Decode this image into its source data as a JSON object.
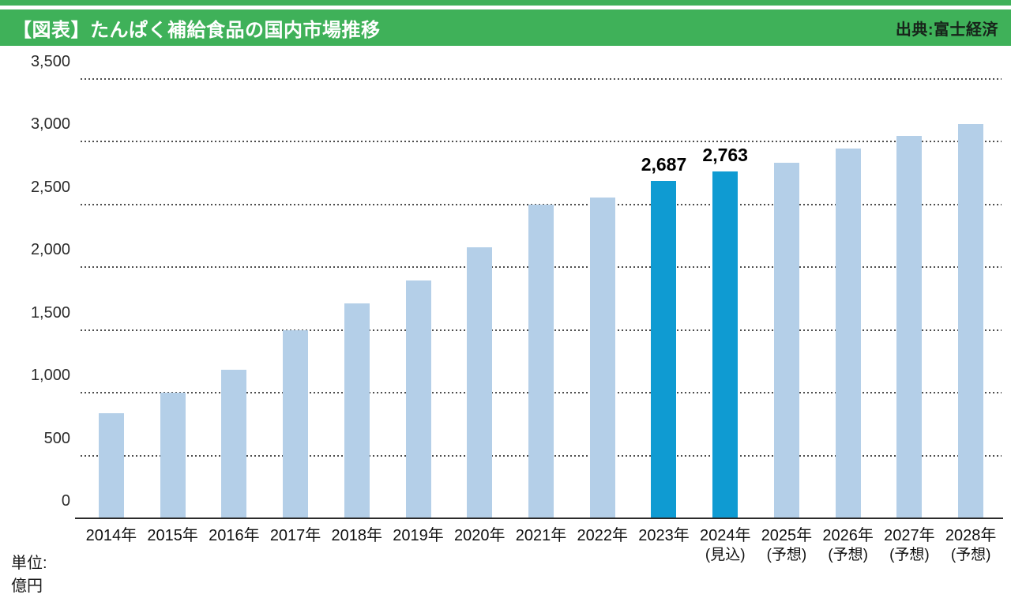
{
  "header": {
    "title": "【図表】たんぱく補給食品の国内市場推移",
    "source": "出典:富士経済",
    "bg_color": "#3fb159",
    "title_color": "#ffffff"
  },
  "unit_note": {
    "line1": "単位:",
    "line2": "億円"
  },
  "chart_data": {
    "type": "bar",
    "title": "たんぱく補給食品の国内市場推移",
    "unit": "億円",
    "categories": [
      "2014年",
      "2015年",
      "2016年",
      "2017年",
      "2018年",
      "2019年",
      "2020年",
      "2021年",
      "2022年",
      "2023年",
      "2024年",
      "2025年",
      "2026年",
      "2027年",
      "2028年"
    ],
    "category_sublabels": [
      "",
      "",
      "",
      "",
      "",
      "",
      "",
      "",
      "",
      "",
      "(見込)",
      "(予想)",
      "(予想)",
      "(予想)",
      "(予想)"
    ],
    "values": [
      840,
      1000,
      1185,
      1500,
      1710,
      1895,
      2160,
      2500,
      2555,
      2687,
      2763,
      2835,
      2945,
      3045,
      3140
    ],
    "data_labels": [
      "",
      "",
      "",
      "",
      "",
      "",
      "",
      "",
      "",
      "2,687",
      "2,763",
      "",
      "",
      "",
      ""
    ],
    "highlighted": [
      false,
      false,
      false,
      false,
      false,
      false,
      false,
      false,
      false,
      true,
      true,
      false,
      false,
      false,
      false
    ],
    "bar_color": "#b4cfe8",
    "highlight_color": "#0f9bd2",
    "ylim": [
      0,
      3500
    ],
    "ytick_interval": 500,
    "yticks": [
      {
        "value": 0,
        "label": "0"
      },
      {
        "value": 500,
        "label": "500"
      },
      {
        "value": 1000,
        "label": "1,000"
      },
      {
        "value": 1500,
        "label": "1,500"
      },
      {
        "value": 2000,
        "label": "2,000"
      },
      {
        "value": 2500,
        "label": "2,500"
      },
      {
        "value": 3000,
        "label": "3,000"
      },
      {
        "value": 3500,
        "label": "3,500"
      }
    ],
    "grid": "horizontal-dotted",
    "legend": "none",
    "xlabel": "",
    "ylabel": "億円"
  }
}
